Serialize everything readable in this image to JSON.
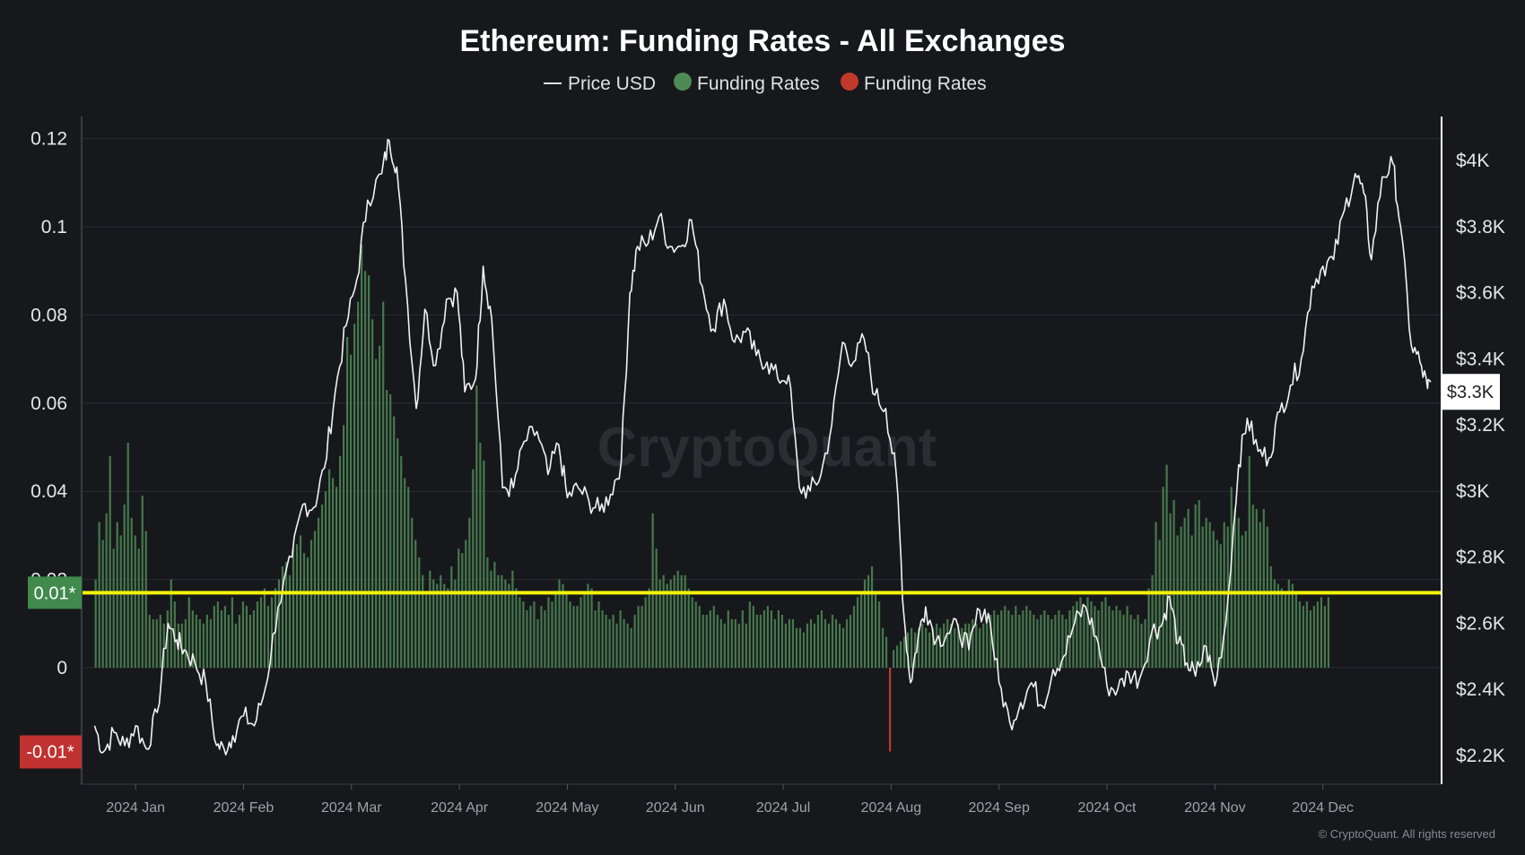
{
  "colors": {
    "background": "#17181c",
    "positive_bar": "#4f8a55",
    "negative_bar": "#c0392b",
    "price_line": "#f2f2f2",
    "threshold_line": "#f2f20a",
    "grid": "#2a2c33",
    "positive_badge": "#3f8a4c",
    "negative_badge": "#c0322f"
  },
  "watermark": "CryptoQuant",
  "copyright": "© CryptoQuant. All rights reserved",
  "chart_data": {
    "type": "bar",
    "title": "Ethereum: Funding Rates - All Exchanges",
    "legend": [
      {
        "label": "Price USD",
        "icon": "line-icon",
        "color": "#f2f2f2"
      },
      {
        "label": "Funding Rates",
        "icon": "dot-icon",
        "color": "#4f8a55"
      },
      {
        "label": "Funding Rates",
        "icon": "dot-icon",
        "color": "#c0392b"
      }
    ],
    "left_axis": {
      "range": [
        -0.02,
        0.125
      ],
      "ticks": [
        {
          "value": 0.12,
          "label": "0.12"
        },
        {
          "value": 0.1,
          "label": "0.1"
        },
        {
          "value": 0.08,
          "label": "0.08"
        },
        {
          "value": 0.06,
          "label": "0.06"
        },
        {
          "value": 0.04,
          "label": "0.04"
        },
        {
          "value": 0.02,
          "label": "0.02"
        },
        {
          "value": 0,
          "label": "0"
        }
      ]
    },
    "right_axis": {
      "range": [
        2180,
        4200
      ],
      "ticks": [
        {
          "value": 4000,
          "label": "$4K"
        },
        {
          "value": 3800,
          "label": "$3.8K"
        },
        {
          "value": 3600,
          "label": "$3.6K"
        },
        {
          "value": 3400,
          "label": "$3.4K"
        },
        {
          "value": 3200,
          "label": "$3.2K"
        },
        {
          "value": 3000,
          "label": "$3K"
        },
        {
          "value": 2800,
          "label": "$2.8K"
        },
        {
          "value": 2600,
          "label": "$2.6K"
        },
        {
          "value": 2400,
          "label": "$2.4K"
        },
        {
          "value": 2200,
          "label": "$2.2K"
        }
      ]
    },
    "x_axis": {
      "domain": [
        -0.5,
        12.1
      ],
      "ticks": [
        {
          "pos": 0,
          "label": "2024 Jan"
        },
        {
          "pos": 1,
          "label": "2024 Feb"
        },
        {
          "pos": 2,
          "label": "2024 Mar"
        },
        {
          "pos": 3,
          "label": "2024 Apr"
        },
        {
          "pos": 4,
          "label": "2024 May"
        },
        {
          "pos": 5,
          "label": "2024 Jun"
        },
        {
          "pos": 6,
          "label": "2024 Jul"
        },
        {
          "pos": 7,
          "label": "2024 Aug"
        },
        {
          "pos": 8,
          "label": "2024 Sep"
        },
        {
          "pos": 9,
          "label": "2024 Oct"
        },
        {
          "pos": 10,
          "label": "2024 Nov"
        },
        {
          "pos": 11,
          "label": "2024 Dec"
        }
      ]
    },
    "threshold_lines": [
      {
        "value": 0.017,
        "label": "0.01*",
        "color": "#f2f20a"
      }
    ],
    "negative_marker": {
      "value": -0.019,
      "label": "-0.01*"
    },
    "current_price_label": "$3.3K",
    "current_price": 3300,
    "price_series": {
      "name": "Price USD",
      "points": [
        [
          -0.38,
          2290
        ],
        [
          -0.3,
          2210
        ],
        [
          -0.2,
          2270
        ],
        [
          -0.1,
          2230
        ],
        [
          0.0,
          2290
        ],
        [
          0.1,
          2220
        ],
        [
          0.2,
          2330
        ],
        [
          0.3,
          2600
        ],
        [
          0.38,
          2550
        ],
        [
          0.45,
          2520
        ],
        [
          0.55,
          2480
        ],
        [
          0.65,
          2420
        ],
        [
          0.75,
          2230
        ],
        [
          0.82,
          2220
        ],
        [
          0.9,
          2260
        ],
        [
          1.0,
          2320
        ],
        [
          1.1,
          2290
        ],
        [
          1.2,
          2400
        ],
        [
          1.32,
          2650
        ],
        [
          1.45,
          2800
        ],
        [
          1.55,
          2960
        ],
        [
          1.65,
          2950
        ],
        [
          1.75,
          3070
        ],
        [
          1.85,
          3300
        ],
        [
          1.95,
          3500
        ],
        [
          2.05,
          3640
        ],
        [
          2.15,
          3880
        ],
        [
          2.28,
          3960
        ],
        [
          2.35,
          4060
        ],
        [
          2.42,
          3980
        ],
        [
          2.5,
          3640
        ],
        [
          2.6,
          3250
        ],
        [
          2.68,
          3550
        ],
        [
          2.78,
          3380
        ],
        [
          2.88,
          3580
        ],
        [
          2.98,
          3600
        ],
        [
          3.05,
          3300
        ],
        [
          3.15,
          3340
        ],
        [
          3.22,
          3680
        ],
        [
          3.3,
          3520
        ],
        [
          3.4,
          3010
        ],
        [
          3.5,
          3010
        ],
        [
          3.6,
          3150
        ],
        [
          3.72,
          3180
        ],
        [
          3.82,
          3050
        ],
        [
          3.92,
          3140
        ],
        [
          4.0,
          2980
        ],
        [
          4.1,
          3010
        ],
        [
          4.2,
          2970
        ],
        [
          4.3,
          2940
        ],
        [
          4.4,
          2990
        ],
        [
          4.5,
          3090
        ],
        [
          4.58,
          3600
        ],
        [
          4.65,
          3740
        ],
        [
          4.75,
          3750
        ],
        [
          4.85,
          3830
        ],
        [
          4.95,
          3740
        ],
        [
          5.05,
          3740
        ],
        [
          5.15,
          3820
        ],
        [
          5.25,
          3620
        ],
        [
          5.35,
          3490
        ],
        [
          5.45,
          3580
        ],
        [
          5.55,
          3450
        ],
        [
          5.65,
          3480
        ],
        [
          5.75,
          3410
        ],
        [
          5.85,
          3390
        ],
        [
          5.95,
          3340
        ],
        [
          6.05,
          3350
        ],
        [
          6.15,
          3010
        ],
        [
          6.25,
          3000
        ],
        [
          6.35,
          3050
        ],
        [
          6.45,
          3200
        ],
        [
          6.55,
          3450
        ],
        [
          6.65,
          3390
        ],
        [
          6.75,
          3460
        ],
        [
          6.85,
          3290
        ],
        [
          6.95,
          3250
        ],
        [
          7.05,
          3040
        ],
        [
          7.12,
          2620
        ],
        [
          7.18,
          2420
        ],
        [
          7.25,
          2560
        ],
        [
          7.32,
          2650
        ],
        [
          7.42,
          2550
        ],
        [
          7.52,
          2570
        ],
        [
          7.62,
          2590
        ],
        [
          7.72,
          2520
        ],
        [
          7.82,
          2640
        ],
        [
          7.9,
          2630
        ],
        [
          8.0,
          2420
        ],
        [
          8.1,
          2300
        ],
        [
          8.2,
          2360
        ],
        [
          8.3,
          2420
        ],
        [
          8.4,
          2350
        ],
        [
          8.5,
          2460
        ],
        [
          8.6,
          2500
        ],
        [
          8.7,
          2600
        ],
        [
          8.8,
          2650
        ],
        [
          8.9,
          2560
        ],
        [
          9.0,
          2410
        ],
        [
          9.1,
          2400
        ],
        [
          9.2,
          2450
        ],
        [
          9.3,
          2430
        ],
        [
          9.42,
          2580
        ],
        [
          9.5,
          2590
        ],
        [
          9.58,
          2680
        ],
        [
          9.66,
          2540
        ],
        [
          9.74,
          2480
        ],
        [
          9.82,
          2440
        ],
        [
          9.92,
          2530
        ],
        [
          10.0,
          2410
        ],
        [
          10.1,
          2600
        ],
        [
          10.22,
          3080
        ],
        [
          10.3,
          3220
        ],
        [
          10.4,
          3120
        ],
        [
          10.5,
          3100
        ],
        [
          10.6,
          3240
        ],
        [
          10.7,
          3320
        ],
        [
          10.8,
          3400
        ],
        [
          10.9,
          3620
        ],
        [
          11.0,
          3680
        ],
        [
          11.1,
          3700
        ],
        [
          11.2,
          3850
        ],
        [
          11.3,
          3960
        ],
        [
          11.38,
          3900
        ],
        [
          11.45,
          3700
        ],
        [
          11.55,
          3950
        ],
        [
          11.65,
          3990
        ],
        [
          11.72,
          3800
        ],
        [
          11.82,
          3440
        ],
        [
          11.9,
          3390
        ],
        [
          11.97,
          3310
        ],
        [
          12.0,
          3330
        ]
      ]
    },
    "funding_series": {
      "name": "Funding Rates",
      "bar_spacing": 0.0333,
      "x_start": -0.37,
      "values": [
        0.02,
        0.033,
        0.029,
        0.035,
        0.048,
        0.027,
        0.033,
        0.03,
        0.037,
        0.051,
        0.034,
        0.03,
        0.027,
        0.039,
        0.031,
        0.012,
        0.011,
        0.011,
        0.012,
        0.01,
        0.013,
        0.02,
        0.015,
        0.01,
        0.01,
        0.011,
        0.016,
        0.013,
        0.012,
        0.011,
        0.01,
        0.012,
        0.011,
        0.014,
        0.015,
        0.013,
        0.014,
        0.012,
        0.016,
        0.01,
        0.012,
        0.015,
        0.014,
        0.012,
        0.013,
        0.015,
        0.016,
        0.018,
        0.014,
        0.016,
        0.018,
        0.02,
        0.023,
        0.024,
        0.021,
        0.027,
        0.028,
        0.03,
        0.026,
        0.025,
        0.029,
        0.031,
        0.034,
        0.037,
        0.04,
        0.045,
        0.043,
        0.041,
        0.048,
        0.055,
        0.075,
        0.071,
        0.078,
        0.083,
        0.096,
        0.09,
        0.089,
        0.079,
        0.07,
        0.073,
        0.083,
        0.063,
        0.062,
        0.057,
        0.052,
        0.048,
        0.043,
        0.041,
        0.034,
        0.029,
        0.025,
        0.021,
        0.017,
        0.022,
        0.02,
        0.019,
        0.021,
        0.019,
        0.018,
        0.023,
        0.02,
        0.027,
        0.026,
        0.029,
        0.034,
        0.045,
        0.064,
        0.051,
        0.047,
        0.025,
        0.022,
        0.024,
        0.021,
        0.021,
        0.02,
        0.019,
        0.022,
        0.018,
        0.016,
        0.015,
        0.013,
        0.014,
        0.015,
        0.011,
        0.014,
        0.013,
        0.016,
        0.015,
        0.017,
        0.02,
        0.019,
        0.017,
        0.015,
        0.014,
        0.014,
        0.016,
        0.017,
        0.019,
        0.018,
        0.013,
        0.015,
        0.013,
        0.012,
        0.011,
        0.012,
        0.01,
        0.013,
        0.011,
        0.01,
        0.009,
        0.012,
        0.014,
        0.014,
        0.016,
        0.018,
        0.035,
        0.027,
        0.02,
        0.021,
        0.019,
        0.02,
        0.021,
        0.022,
        0.021,
        0.021,
        0.018,
        0.016,
        0.015,
        0.014,
        0.012,
        0.012,
        0.013,
        0.014,
        0.012,
        0.011,
        0.01,
        0.013,
        0.011,
        0.011,
        0.01,
        0.013,
        0.01,
        0.015,
        0.014,
        0.012,
        0.012,
        0.013,
        0.014,
        0.013,
        0.011,
        0.013,
        0.012,
        0.01,
        0.011,
        0.011,
        0.009,
        0.009,
        0.008,
        0.01,
        0.011,
        0.01,
        0.012,
        0.013,
        0.011,
        0.01,
        0.012,
        0.011,
        0.01,
        0.009,
        0.011,
        0.012,
        0.014,
        0.016,
        0.017,
        0.02,
        0.021,
        0.023,
        0.017,
        0.015,
        0.009,
        0.007,
        -0.019,
        0.004,
        0.005,
        0.006,
        0.007,
        0.008,
        0.009,
        0.008,
        0.009,
        0.01,
        0.009,
        0.008,
        0.009,
        0.01,
        0.009,
        0.01,
        0.011,
        0.01,
        0.009,
        0.01,
        0.009,
        0.01,
        0.01,
        0.011,
        0.01,
        0.009,
        0.01,
        0.011,
        0.012,
        0.013,
        0.012,
        0.013,
        0.014,
        0.013,
        0.012,
        0.014,
        0.012,
        0.013,
        0.014,
        0.013,
        0.012,
        0.011,
        0.012,
        0.013,
        0.012,
        0.011,
        0.012,
        0.013,
        0.012,
        0.011,
        0.013,
        0.014,
        0.015,
        0.016,
        0.013,
        0.016,
        0.015,
        0.014,
        0.013,
        0.015,
        0.016,
        0.014,
        0.013,
        0.014,
        0.013,
        0.012,
        0.014,
        0.012,
        0.011,
        0.012,
        0.01,
        0.011,
        0.018,
        0.021,
        0.033,
        0.029,
        0.041,
        0.046,
        0.035,
        0.038,
        0.03,
        0.032,
        0.034,
        0.036,
        0.03,
        0.037,
        0.038,
        0.032,
        0.034,
        0.033,
        0.031,
        0.029,
        0.028,
        0.033,
        0.032,
        0.041,
        0.036,
        0.034,
        0.03,
        0.031,
        0.048,
        0.037,
        0.036,
        0.033,
        0.036,
        0.032,
        0.023,
        0.02,
        0.019,
        0.018,
        0.017,
        0.02,
        0.019,
        0.017,
        0.015,
        0.014,
        0.015,
        0.013,
        0.014,
        0.015,
        0.016,
        0.014,
        0.016
      ]
    }
  }
}
